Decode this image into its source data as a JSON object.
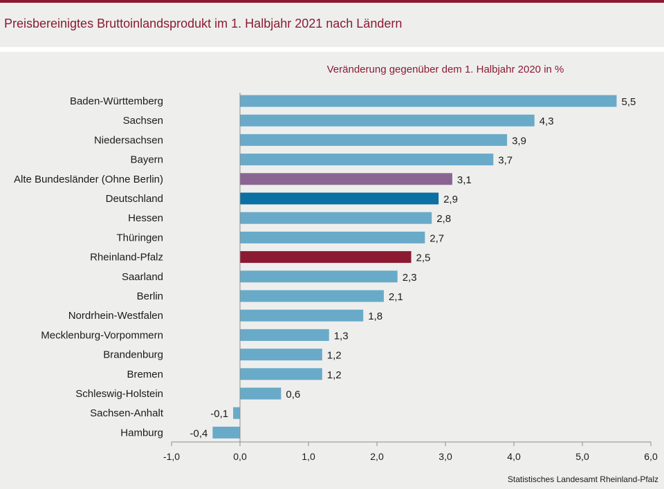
{
  "title": "Preisbereinigtes Bruttoinlandsprodukt im 1. Halbjahr 2021 nach Ländern",
  "source": "Statistisches Landesamt Rheinland-Pfalz",
  "colors": {
    "brand": "#8b1a32",
    "bar_default": "#69aac9",
    "bar_alte_bundeslaender": "#8a6592",
    "bar_deutschland": "#0b70a3",
    "bar_rheinland_pfalz": "#8b1a32",
    "background": "#eeefed"
  },
  "chart_data": {
    "type": "bar",
    "orientation": "horizontal",
    "subtitle": "Veränderung gegenüber dem 1. Halbjahr 2020 in %",
    "categories": [
      "Baden-Württemberg",
      "Sachsen",
      "Niedersachsen",
      "Bayern",
      "Alte Bundesländer (Ohne Berlin)",
      "Deutschland",
      "Hessen",
      "Thüringen",
      "Rheinland-Pfalz",
      "Saarland",
      "Berlin",
      "Nordrhein-Westfalen",
      "Mecklenburg-Vorpommern",
      "Brandenburg",
      "Bremen",
      "Schleswig-Holstein",
      "Sachsen-Anhalt",
      "Hamburg"
    ],
    "values": [
      5.5,
      4.3,
      3.9,
      3.7,
      3.1,
      2.9,
      2.8,
      2.7,
      2.5,
      2.3,
      2.1,
      1.8,
      1.3,
      1.2,
      1.2,
      0.6,
      -0.1,
      -0.4
    ],
    "value_labels": [
      "5,5",
      "4,3",
      "3,9",
      "3,7",
      "3,1",
      "2,9",
      "2,8",
      "2,7",
      "2,5",
      "2,3",
      "2,1",
      "1,8",
      "1,3",
      "1,2",
      "1,2",
      "0,6",
      "-0,1",
      "-0,4"
    ],
    "highlight": {
      "Alte Bundesländer (Ohne Berlin)": "bar_alte_bundeslaender",
      "Deutschland": "bar_deutschland",
      "Rheinland-Pfalz": "bar_rheinland_pfalz"
    },
    "xlim": [
      -1.0,
      6.0
    ],
    "xticks": [
      -1.0,
      0.0,
      1.0,
      2.0,
      3.0,
      4.0,
      5.0,
      6.0
    ],
    "xtick_labels": [
      "-1,0",
      "0,0",
      "1,0",
      "2,0",
      "3,0",
      "4,0",
      "5,0",
      "6,0"
    ],
    "grid": false,
    "xlabel": "",
    "ylabel": ""
  }
}
